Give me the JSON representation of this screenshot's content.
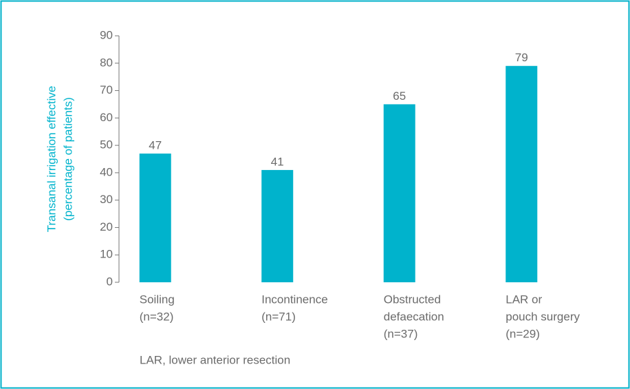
{
  "chart_data": {
    "type": "bar",
    "y_label": [
      "Transanal irrigation effective",
      "(percentage of patients)"
    ],
    "categories": [
      [
        "Soiling",
        "(n=32)"
      ],
      [
        "Incontinence",
        "(n=71)"
      ],
      [
        "Obstructed",
        "defaecation",
        "(n=37)"
      ],
      [
        "LAR or",
        "pouch surgery",
        "(n=29)"
      ]
    ],
    "values": [
      47,
      41,
      65,
      79
    ],
    "color": "#00b3cc",
    "ylim": [
      0,
      90
    ],
    "yticks": [
      0,
      10,
      20,
      30,
      40,
      50,
      60,
      70,
      80,
      90
    ],
    "footnote": "LAR, lower anterior resection"
  }
}
